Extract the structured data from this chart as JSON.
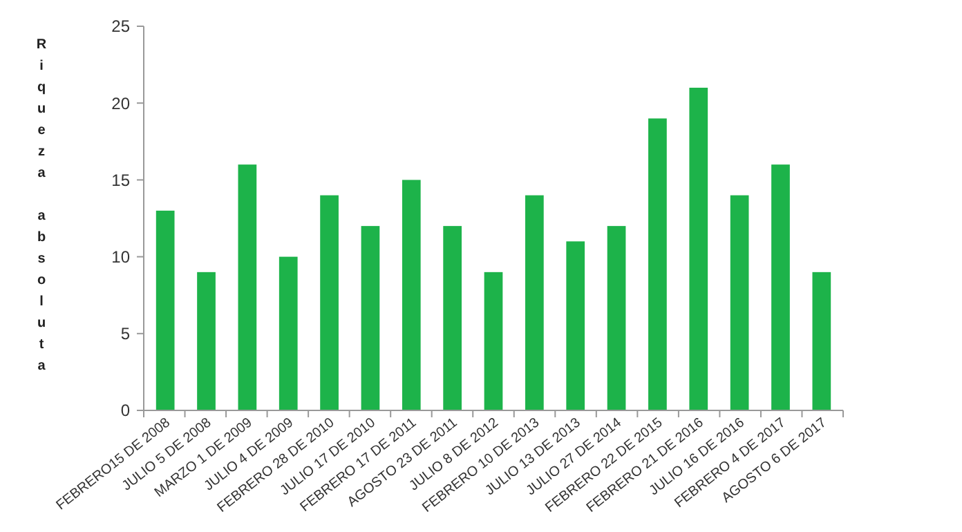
{
  "chart_data": {
    "type": "bar",
    "ylabel": "Riqueza absoluta",
    "categories": [
      "FEBRERO15 DE 2008",
      "JULIO 5 DE 2008",
      "MARZO 1 DE 2009",
      "JULIO 4 DE 2009",
      "FEBRERO 28 DE 2010",
      "JULIO 17 DE 2010",
      "FEBRERO 17 DE 2011",
      "AGOSTO 23 DE 2011",
      "JULIO 8 DE 2012",
      "FEBRERO 10 DE 2013",
      "JULIO 13 DE 2013",
      "JULIO 27 DE 2014",
      "FEBRERO 22 DE 2015",
      "FEBRERO 21 DE 2016",
      "JULIO 16 DE 2016",
      "FEBRERO 4 DE 2017",
      "AGOSTO 6 DE 2017"
    ],
    "values": [
      13,
      9,
      16,
      10,
      14,
      12,
      15,
      12,
      9,
      14,
      11,
      12,
      19,
      21,
      14,
      16,
      9
    ],
    "color": "#1db34a",
    "ylim": [
      0,
      25
    ],
    "yticks": [
      0,
      5,
      10,
      15,
      20,
      25
    ],
    "grid": false
  }
}
